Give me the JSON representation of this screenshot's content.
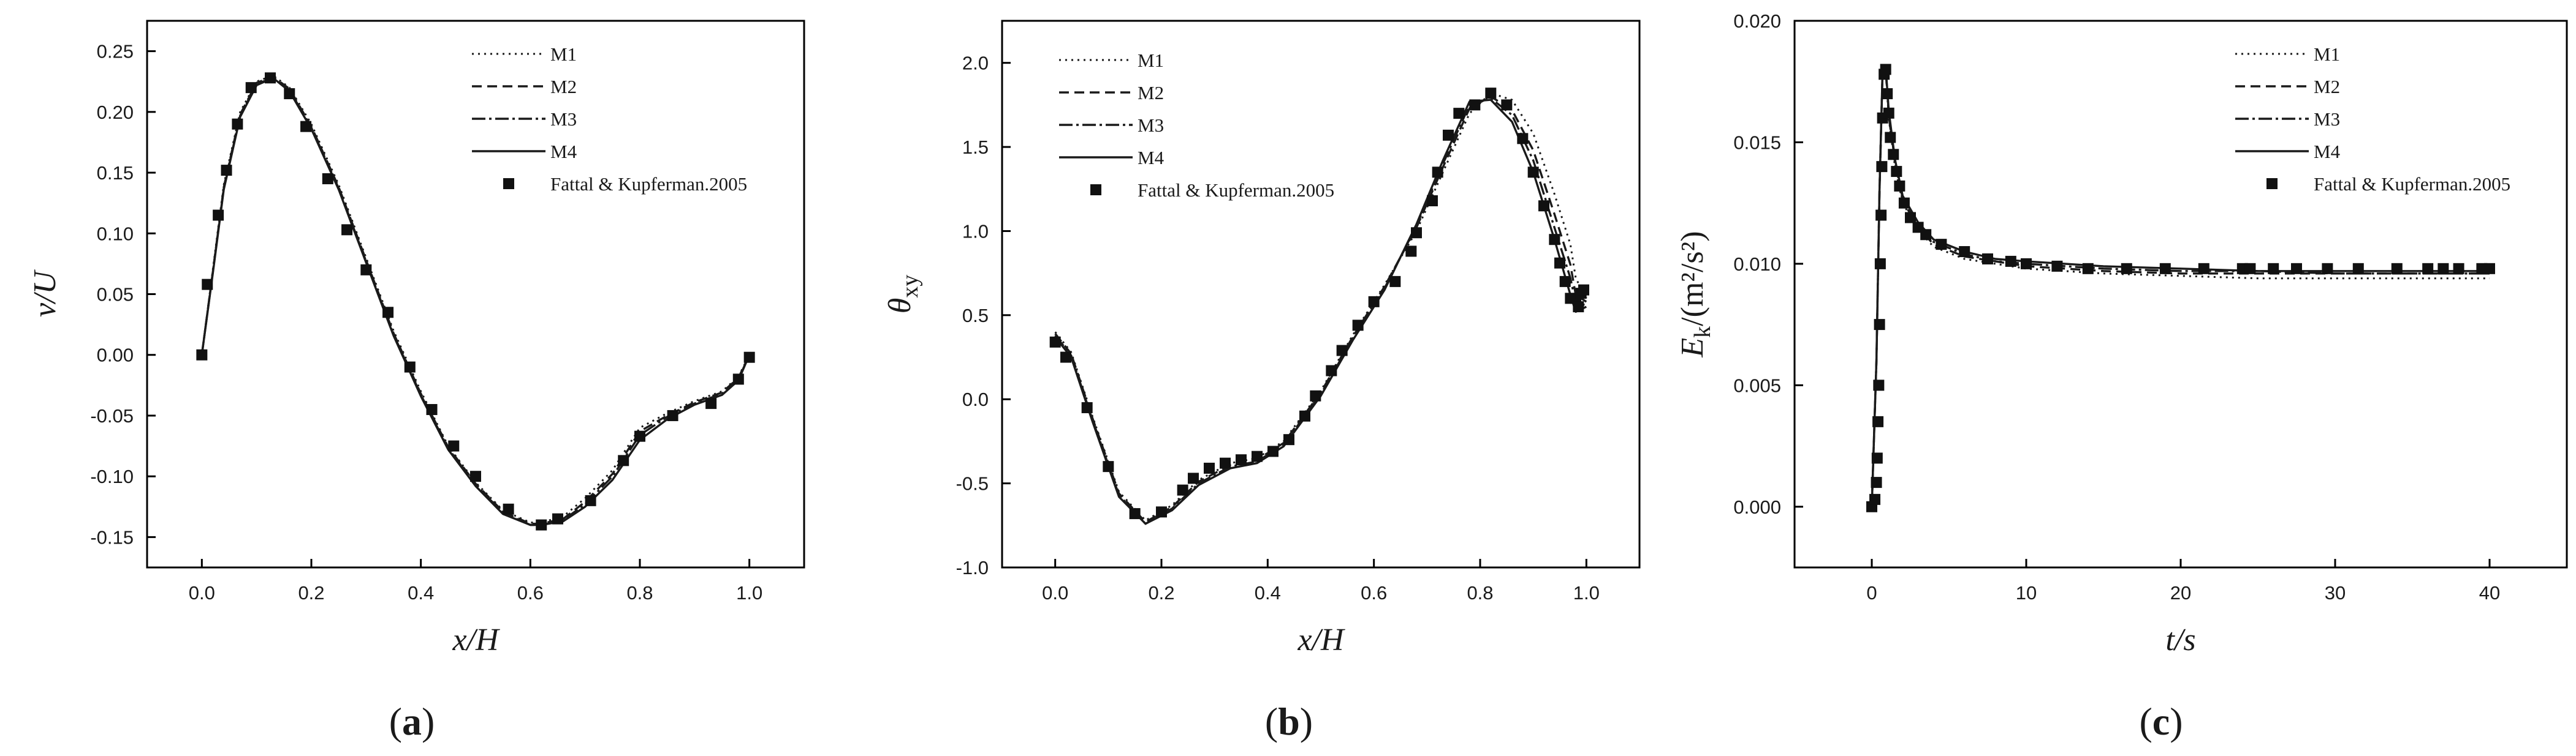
{
  "figure": {
    "series_styles": [
      {
        "name": "M1",
        "dash": "3 7",
        "width": 3
      },
      {
        "name": "M2",
        "dash": "16 9",
        "width": 3.4
      },
      {
        "name": "M3",
        "dash": "22 6 4 6",
        "width": 3.4
      },
      {
        "name": "M4",
        "dash": "",
        "width": 3.4
      }
    ],
    "colors": {
      "line": "#1a1a1a",
      "marker": "#111111",
      "frame": "#000000"
    }
  },
  "chart_data": [
    {
      "id": "a",
      "type": "line",
      "panel_label": "a",
      "xlabel": "x/H",
      "ylabel": "v/U",
      "xlim": [
        -0.1,
        1.1
      ],
      "ylim": [
        -0.175,
        0.275
      ],
      "xticks": [
        0.0,
        0.2,
        0.4,
        0.6,
        0.8,
        1.0
      ],
      "xtick_labels": [
        "0.0",
        "0.2",
        "0.4",
        "0.6",
        "0.8",
        "1.0"
      ],
      "yticks": [
        -0.15,
        -0.1,
        -0.05,
        0.0,
        0.05,
        0.1,
        0.15,
        0.2,
        0.25
      ],
      "ytick_labels": [
        "-0.15",
        "-0.10",
        "-0.05",
        "0.00",
        "0.05",
        "0.10",
        "0.15",
        "0.20",
        "0.25"
      ],
      "legend": [
        "M1",
        "M2",
        "M3",
        "M4",
        "Fattal & Kupferman.2005"
      ],
      "series": [
        {
          "name": "M1",
          "x": [
            0,
            0.02,
            0.04,
            0.07,
            0.1,
            0.13,
            0.16,
            0.2,
            0.25,
            0.3,
            0.35,
            0.4,
            0.45,
            0.5,
            0.55,
            0.6,
            0.62,
            0.66,
            0.7,
            0.75,
            0.8,
            0.85,
            0.9,
            0.95,
            0.98,
            1.0
          ],
          "y": [
            0,
            0.07,
            0.14,
            0.2,
            0.225,
            0.23,
            0.22,
            0.19,
            0.14,
            0.08,
            0.02,
            -0.03,
            -0.075,
            -0.105,
            -0.128,
            -0.138,
            -0.138,
            -0.133,
            -0.118,
            -0.095,
            -0.06,
            -0.048,
            -0.038,
            -0.03,
            -0.018,
            0
          ]
        },
        {
          "name": "M2",
          "x": [
            0,
            0.02,
            0.04,
            0.07,
            0.1,
            0.13,
            0.16,
            0.2,
            0.25,
            0.3,
            0.35,
            0.4,
            0.45,
            0.5,
            0.55,
            0.6,
            0.62,
            0.66,
            0.7,
            0.75,
            0.8,
            0.85,
            0.9,
            0.95,
            0.98,
            1.0
          ],
          "y": [
            0,
            0.068,
            0.138,
            0.198,
            0.224,
            0.229,
            0.219,
            0.188,
            0.138,
            0.078,
            0.018,
            -0.032,
            -0.076,
            -0.106,
            -0.129,
            -0.139,
            -0.139,
            -0.135,
            -0.121,
            -0.098,
            -0.063,
            -0.05,
            -0.039,
            -0.031,
            -0.019,
            0
          ]
        },
        {
          "name": "M3",
          "x": [
            0,
            0.02,
            0.04,
            0.07,
            0.1,
            0.13,
            0.16,
            0.2,
            0.25,
            0.3,
            0.35,
            0.4,
            0.45,
            0.5,
            0.55,
            0.6,
            0.62,
            0.66,
            0.7,
            0.75,
            0.8,
            0.85,
            0.9,
            0.95,
            0.98,
            1.0
          ],
          "y": [
            0,
            0.068,
            0.137,
            0.197,
            0.223,
            0.228,
            0.218,
            0.187,
            0.137,
            0.077,
            0.017,
            -0.033,
            -0.077,
            -0.107,
            -0.13,
            -0.14,
            -0.14,
            -0.136,
            -0.123,
            -0.1,
            -0.066,
            -0.051,
            -0.04,
            -0.032,
            -0.02,
            0
          ]
        },
        {
          "name": "M4",
          "x": [
            0,
            0.02,
            0.04,
            0.07,
            0.1,
            0.13,
            0.16,
            0.2,
            0.25,
            0.3,
            0.35,
            0.4,
            0.45,
            0.5,
            0.55,
            0.6,
            0.62,
            0.66,
            0.7,
            0.75,
            0.8,
            0.85,
            0.9,
            0.95,
            0.98,
            1.0
          ],
          "y": [
            0,
            0.067,
            0.136,
            0.196,
            0.222,
            0.228,
            0.217,
            0.186,
            0.136,
            0.076,
            0.016,
            -0.034,
            -0.078,
            -0.108,
            -0.131,
            -0.14,
            -0.14,
            -0.137,
            -0.125,
            -0.103,
            -0.07,
            -0.053,
            -0.041,
            -0.033,
            -0.021,
            0
          ]
        }
      ],
      "reference": {
        "name": "Fattal & Kupferman.2005",
        "x": [
          0,
          0.01,
          0.03,
          0.045,
          0.065,
          0.09,
          0.125,
          0.16,
          0.19,
          0.23,
          0.265,
          0.3,
          0.34,
          0.38,
          0.42,
          0.46,
          0.5,
          0.56,
          0.62,
          0.65,
          0.71,
          0.77,
          0.8,
          0.86,
          0.93,
          0.98,
          1.0
        ],
        "y": [
          0,
          0.058,
          0.115,
          0.152,
          0.19,
          0.22,
          0.228,
          0.215,
          0.188,
          0.145,
          0.103,
          0.07,
          0.035,
          -0.01,
          -0.045,
          -0.075,
          -0.1,
          -0.127,
          -0.14,
          -0.135,
          -0.12,
          -0.087,
          -0.067,
          -0.05,
          -0.04,
          -0.02,
          -0.002
        ]
      }
    },
    {
      "id": "b",
      "type": "line",
      "panel_label": "b",
      "xlabel": "x/H",
      "ylabel": "θ",
      "ylabel_sub": "xy",
      "xlim": [
        -0.1,
        1.1
      ],
      "ylim": [
        -1.0,
        2.25
      ],
      "xticks": [
        0.0,
        0.2,
        0.4,
        0.6,
        0.8,
        1.0
      ],
      "xtick_labels": [
        "0.0",
        "0.2",
        "0.4",
        "0.6",
        "0.8",
        "1.0"
      ],
      "yticks": [
        -1.0,
        -0.5,
        0.0,
        0.5,
        1.0,
        1.5,
        2.0
      ],
      "ytick_labels": [
        "-1.0",
        "-0.5",
        "0.0",
        "0.5",
        "1.0",
        "1.5",
        "2.0"
      ],
      "legend": [
        "M1",
        "M2",
        "M3",
        "M4",
        "Fattal & Kupferman.2005"
      ],
      "series": [
        {
          "name": "M1",
          "x": [
            0,
            0.03,
            0.07,
            0.12,
            0.17,
            0.22,
            0.27,
            0.33,
            0.38,
            0.43,
            0.5,
            0.56,
            0.62,
            0.68,
            0.73,
            0.78,
            0.82,
            0.86,
            0.9,
            0.94,
            0.97,
            0.98,
            1.0
          ],
          "y": [
            0.4,
            0.28,
            -0.1,
            -0.55,
            -0.72,
            -0.63,
            -0.48,
            -0.38,
            -0.35,
            -0.25,
            0.05,
            0.38,
            0.68,
            1.0,
            1.35,
            1.7,
            1.82,
            1.78,
            1.58,
            1.22,
            0.92,
            0.72,
            0.6
          ]
        },
        {
          "name": "M2",
          "x": [
            0,
            0.03,
            0.07,
            0.12,
            0.17,
            0.22,
            0.27,
            0.33,
            0.38,
            0.43,
            0.5,
            0.56,
            0.62,
            0.68,
            0.73,
            0.78,
            0.82,
            0.86,
            0.9,
            0.94,
            0.97,
            0.98,
            1.0
          ],
          "y": [
            0.39,
            0.27,
            -0.11,
            -0.56,
            -0.73,
            -0.64,
            -0.49,
            -0.39,
            -0.36,
            -0.26,
            0.04,
            0.37,
            0.67,
            1.02,
            1.38,
            1.73,
            1.8,
            1.72,
            1.48,
            1.1,
            0.8,
            0.62,
            0.58
          ]
        },
        {
          "name": "M3",
          "x": [
            0,
            0.03,
            0.07,
            0.12,
            0.17,
            0.22,
            0.27,
            0.33,
            0.38,
            0.43,
            0.5,
            0.56,
            0.62,
            0.68,
            0.73,
            0.78,
            0.82,
            0.86,
            0.9,
            0.94,
            0.97,
            0.98,
            1.0
          ],
          "y": [
            0.38,
            0.26,
            -0.12,
            -0.57,
            -0.74,
            -0.65,
            -0.5,
            -0.4,
            -0.37,
            -0.27,
            0.03,
            0.36,
            0.66,
            1.03,
            1.4,
            1.75,
            1.79,
            1.69,
            1.42,
            1.02,
            0.72,
            0.57,
            0.56
          ]
        },
        {
          "name": "M4",
          "x": [
            0,
            0.03,
            0.07,
            0.12,
            0.17,
            0.22,
            0.27,
            0.33,
            0.38,
            0.43,
            0.5,
            0.56,
            0.62,
            0.68,
            0.73,
            0.78,
            0.82,
            0.86,
            0.9,
            0.94,
            0.97,
            0.98,
            1.0
          ],
          "y": [
            0.37,
            0.25,
            -0.13,
            -0.58,
            -0.74,
            -0.66,
            -0.51,
            -0.41,
            -0.38,
            -0.28,
            0.02,
            0.35,
            0.65,
            1.04,
            1.42,
            1.77,
            1.78,
            1.65,
            1.35,
            0.95,
            0.62,
            0.52,
            0.55
          ]
        }
      ],
      "reference": {
        "name": "Fattal & Kupferman.2005",
        "x": [
          0,
          0.02,
          0.06,
          0.1,
          0.15,
          0.2,
          0.24,
          0.26,
          0.29,
          0.32,
          0.35,
          0.38,
          0.41,
          0.44,
          0.47,
          0.49,
          0.52,
          0.54,
          0.57,
          0.6,
          0.64,
          0.67,
          0.68,
          0.71,
          0.72,
          0.74,
          0.76,
          0.79,
          0.82,
          0.85,
          0.88,
          0.9,
          0.92,
          0.94,
          0.95,
          0.96,
          0.97,
          0.98,
          0.985,
          0.99,
          0.995
        ],
        "y": [
          0.34,
          0.25,
          -0.05,
          -0.4,
          -0.68,
          -0.67,
          -0.54,
          -0.47,
          -0.41,
          -0.38,
          -0.36,
          -0.34,
          -0.31,
          -0.24,
          -0.1,
          0.02,
          0.17,
          0.29,
          0.44,
          0.58,
          0.7,
          0.88,
          0.99,
          1.18,
          1.35,
          1.57,
          1.7,
          1.75,
          1.82,
          1.75,
          1.55,
          1.35,
          1.15,
          0.95,
          0.81,
          0.7,
          0.6,
          0.6,
          0.55,
          0.63,
          0.65
        ]
      }
    },
    {
      "id": "c",
      "type": "line",
      "panel_label": "c",
      "xlabel": "t/s",
      "ylabel": "E",
      "ylabel_sub": "k",
      "ylabel_unit": "/(m²/s²)",
      "xlim": [
        -5,
        45
      ],
      "ylim": [
        -0.0025,
        0.02
      ],
      "xticks": [
        0,
        10,
        20,
        30,
        40
      ],
      "xtick_labels": [
        "0",
        "10",
        "20",
        "30",
        "40"
      ],
      "yticks": [
        0.0,
        0.005,
        0.01,
        0.015,
        0.02
      ],
      "ytick_labels": [
        "0.000",
        "0.005",
        "0.010",
        "0.015",
        "0.020"
      ],
      "legend": [
        "M1",
        "M2",
        "M3",
        "M4",
        "Fattal & Kupferman.2005"
      ],
      "series": [
        {
          "name": "M1",
          "x": [
            0,
            0.3,
            0.5,
            0.7,
            0.9,
            1.1,
            1.5,
            2,
            3,
            4,
            6,
            8,
            10,
            15,
            20,
            25,
            30,
            35,
            40
          ],
          "y": [
            0,
            0.006,
            0.013,
            0.0178,
            0.0179,
            0.016,
            0.014,
            0.0125,
            0.0114,
            0.0107,
            0.0102,
            0.01,
            0.0098,
            0.0096,
            0.0095,
            0.0094,
            0.0094,
            0.0094,
            0.0094
          ]
        },
        {
          "name": "M2",
          "x": [
            0,
            0.3,
            0.5,
            0.7,
            0.9,
            1.1,
            1.5,
            2,
            3,
            4,
            6,
            8,
            10,
            15,
            20,
            25,
            30,
            35,
            40
          ],
          "y": [
            0,
            0.006,
            0.013,
            0.0179,
            0.018,
            0.0161,
            0.0141,
            0.0126,
            0.0115,
            0.0108,
            0.0103,
            0.0101,
            0.0099,
            0.0097,
            0.0096,
            0.0096,
            0.0096,
            0.0096,
            0.0096
          ]
        },
        {
          "name": "M3",
          "x": [
            0,
            0.3,
            0.5,
            0.7,
            0.9,
            1.1,
            1.5,
            2,
            3,
            4,
            6,
            8,
            10,
            15,
            20,
            25,
            30,
            35,
            40
          ],
          "y": [
            0,
            0.006,
            0.013,
            0.0179,
            0.018,
            0.0162,
            0.0142,
            0.0127,
            0.0116,
            0.0109,
            0.0104,
            0.0101,
            0.01,
            0.0098,
            0.0097,
            0.0097,
            0.0096,
            0.0096,
            0.0096
          ]
        },
        {
          "name": "M4",
          "x": [
            0,
            0.3,
            0.5,
            0.7,
            0.9,
            1.1,
            1.5,
            2,
            3,
            4,
            6,
            8,
            10,
            15,
            20,
            25,
            30,
            35,
            40
          ],
          "y": [
            0,
            0.006,
            0.013,
            0.018,
            0.0181,
            0.0163,
            0.0143,
            0.0128,
            0.0117,
            0.011,
            0.0105,
            0.0102,
            0.0101,
            0.0099,
            0.0098,
            0.0097,
            0.0097,
            0.0097,
            0.0097
          ]
        }
      ],
      "reference": {
        "name": "Fattal & Kupferman.2005",
        "x": [
          0,
          0.2,
          0.3,
          0.35,
          0.4,
          0.45,
          0.5,
          0.55,
          0.6,
          0.65,
          0.7,
          0.8,
          0.9,
          1.0,
          1.1,
          1.2,
          1.4,
          1.6,
          1.8,
          2.1,
          2.5,
          3.0,
          3.5,
          4.5,
          6,
          7.5,
          9,
          10,
          12,
          14,
          16.5,
          19,
          21.5,
          24,
          24.5,
          26,
          27.5,
          29.5,
          31.5,
          34,
          36,
          37,
          38,
          39.5,
          40
        ],
        "y": [
          0,
          0.0003,
          0.001,
          0.002,
          0.0035,
          0.005,
          0.0075,
          0.01,
          0.012,
          0.014,
          0.016,
          0.0178,
          0.018,
          0.017,
          0.0162,
          0.0152,
          0.0145,
          0.0138,
          0.0132,
          0.0125,
          0.0119,
          0.0115,
          0.0112,
          0.0108,
          0.0105,
          0.0102,
          0.0101,
          0.01,
          0.0099,
          0.0098,
          0.0098,
          0.0098,
          0.0098,
          0.0098,
          0.0098,
          0.0098,
          0.0098,
          0.0098,
          0.0098,
          0.0098,
          0.0098,
          0.0098,
          0.0098,
          0.0098,
          0.0098
        ]
      }
    }
  ]
}
